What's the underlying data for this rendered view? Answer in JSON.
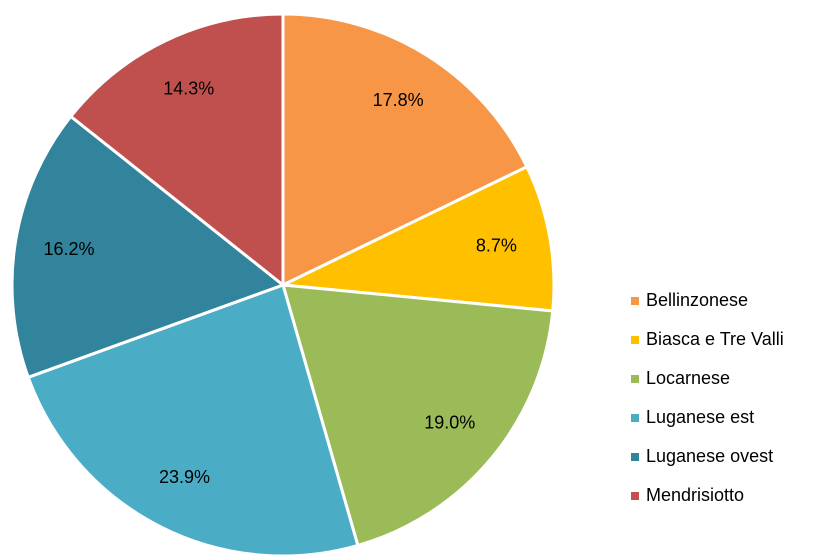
{
  "chart_data": {
    "type": "pie",
    "categories": [
      "Bellinzonese",
      "Biasca e Tre Valli",
      "Locarnese",
      "Luganese est",
      "Luganese ovest",
      "Mendrisiotto"
    ],
    "values": [
      17.8,
      8.7,
      19.0,
      23.9,
      16.2,
      14.3
    ],
    "value_labels": [
      "17.8%",
      "8.7%",
      "19.0%",
      "23.9%",
      "16.2%",
      "14.3%"
    ],
    "colors": [
      "#f79646",
      "#ffc000",
      "#9bbb59",
      "#4bacc6",
      "#31849b",
      "#c0504d"
    ],
    "legend": "right"
  }
}
